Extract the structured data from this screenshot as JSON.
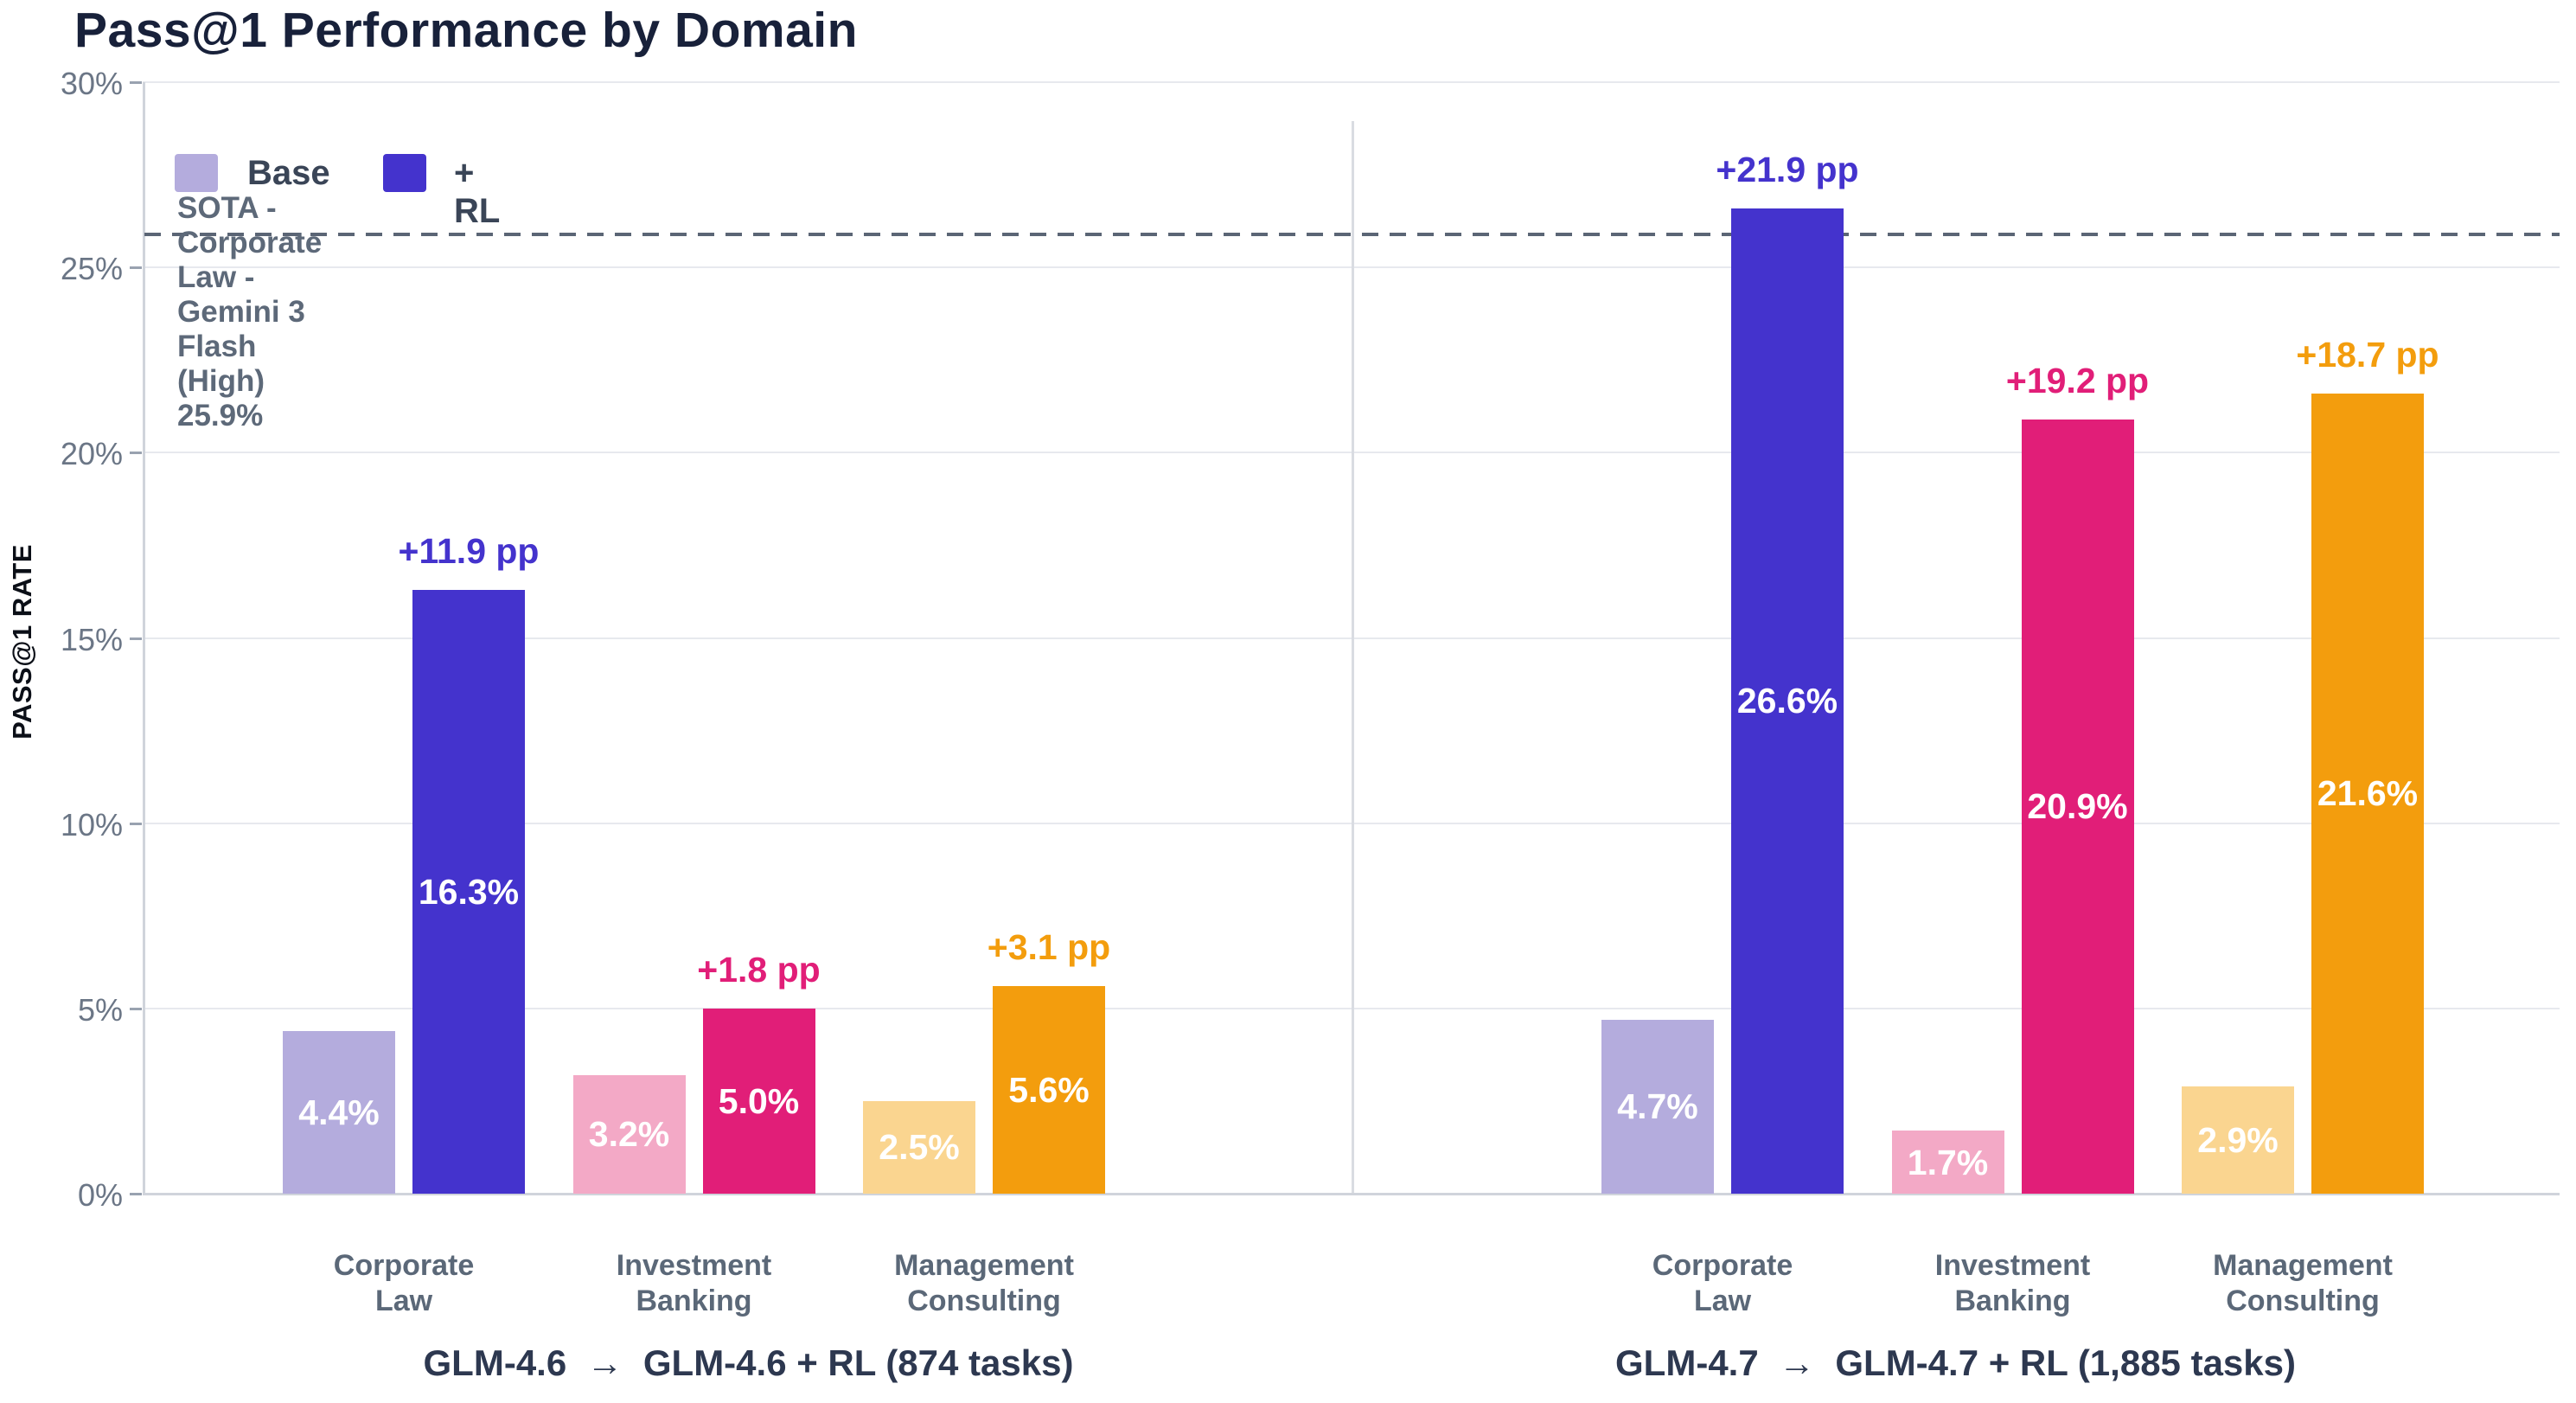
{
  "chart_data": {
    "type": "bar",
    "title": "Pass@1 Performance by Domain",
    "ylabel": "PASS@1 RATE",
    "xlabel": "",
    "ylim": [
      0,
      30
    ],
    "y_ticks": [
      0,
      5,
      10,
      15,
      20,
      25,
      30
    ],
    "y_tick_labels": [
      "0%",
      "5%",
      "10%",
      "15%",
      "20%",
      "25%",
      "30%"
    ],
    "grid": "horizontal",
    "legend_position": "top-left-inside",
    "series_names": [
      "Base",
      "+ RL"
    ],
    "legend_colors": [
      "#b4acdd",
      "#4433cd"
    ],
    "sota": {
      "value": 25.9,
      "label": "SOTA - Corporate Law - Gemini 3 Flash (High)  25.9%",
      "line_style": "dashed",
      "line_color": "#5b6575"
    },
    "groups": [
      {
        "caption": "GLM-4.6  →  GLM-4.6 + RL (874 tasks)",
        "bars": [
          {
            "category": "Corporate\nLaw",
            "base": 4.4,
            "rl": 16.3,
            "base_label": "4.4%",
            "rl_label": "16.3%",
            "delta": "+11.9 pp",
            "base_color": "#b4acdd",
            "rl_color": "#4433cd"
          },
          {
            "category": "Investment\nBanking",
            "base": 3.2,
            "rl": 5.0,
            "base_label": "3.2%",
            "rl_label": "5.0%",
            "delta": "+1.8 pp",
            "base_color": "#f3a9c6",
            "rl_color": "#e11e78"
          },
          {
            "category": "Management\nConsulting",
            "base": 2.5,
            "rl": 5.6,
            "base_label": "2.5%",
            "rl_label": "5.6%",
            "delta": "+3.1 pp",
            "base_color": "#fad590",
            "rl_color": "#f39d0d"
          }
        ]
      },
      {
        "caption": "GLM-4.7  →  GLM-4.7 + RL (1,885 tasks)",
        "bars": [
          {
            "category": "Corporate\nLaw",
            "base": 4.7,
            "rl": 26.6,
            "base_label": "4.7%",
            "rl_label": "26.6%",
            "delta": "+21.9 pp",
            "base_color": "#b4acdd",
            "rl_color": "#4433cd"
          },
          {
            "category": "Investment\nBanking",
            "base": 1.7,
            "rl": 20.9,
            "base_label": "1.7%",
            "rl_label": "20.9%",
            "delta": "+19.2 pp",
            "base_color": "#f3a9c6",
            "rl_color": "#e11e78"
          },
          {
            "category": "Management\nConsulting",
            "base": 2.9,
            "rl": 21.6,
            "base_label": "2.9%",
            "rl_label": "21.6%",
            "delta": "+18.7 pp",
            "base_color": "#fad590",
            "rl_color": "#f39d0d"
          }
        ]
      }
    ]
  }
}
